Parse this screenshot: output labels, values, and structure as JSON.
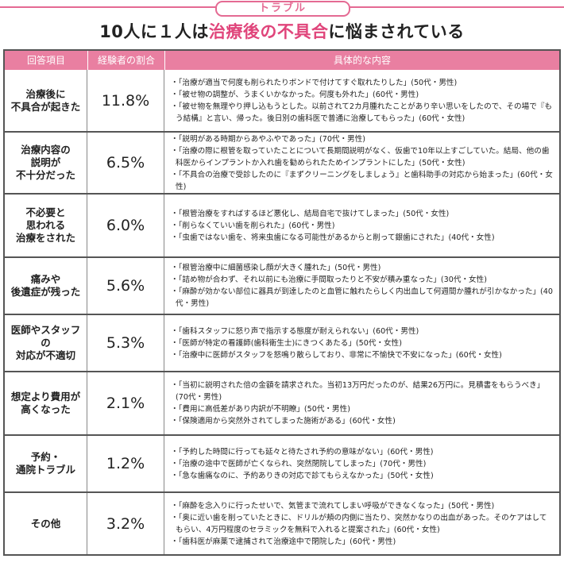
{
  "header": {
    "badge": "トラブル",
    "title_pre": "10人に１人は",
    "title_highlight": "治療後の不具合",
    "title_post": "に悩まされている"
  },
  "table": {
    "columns": [
      "回答項目",
      "経験者の割合",
      "具体的な内容"
    ],
    "rows": [
      {
        "item": "治療後に\n不具合が起きた",
        "percent": "11.8%",
        "details": [
          "「治療が適当で何度も削られたりボンドで付けてすぐ取れたりした」(50代・男性)",
          "「被せ物の調整が、うまくいかなかった。何度も外れた」(60代・男性)",
          "「被せ物を無理やり押し込もうとした。以前されて2カ月腫れたことがあり辛い思いをしたので、その場で『もう結構』と言い、帰った。後日別の歯科医で普通に治療してもらった」(60代・女性)"
        ]
      },
      {
        "item": "治療内容の\n説明が\n不十分だった",
        "percent": "6.5%",
        "details": [
          "「説明がある時期からあやふやであった」(70代・男性)",
          "「治療の際に根管を取っていたことについて長期間説明がなく、仮歯で10年以上すごしていた。結局、他の歯科医からインプラントか入れ歯を勧められたためインプラントにした」(50代・女性)",
          "「不具合の治療で受診したのに『まずクリーニングをしましょう』と歯科助手の対応から始まった」(60代・女性)"
        ]
      },
      {
        "item": "不必要と\n思われる\n治療をされた",
        "percent": "6.0%",
        "details": [
          "「根管治療をすればするほど悪化し、結局自宅で抜けてしまった」(50代・女性)",
          "「削らなくていい歯を削られた」(60代・男性)",
          "「虫歯ではない歯を、将来虫歯になる可能性があるからと削って銀歯にされた」(40代・女性)"
        ]
      },
      {
        "item": "痛みや\n後遺症が残った",
        "percent": "5.6%",
        "details": [
          "「根管治療中に細菌感染し顔が大きく腫れた」(50代・男性)",
          "「詰め物が合わず、それ以前にも治療に手間取ったりと不安が積み重なった」(30代・女性)",
          "「麻酔が効かない部位に器具が到達したのと血管に触れたらしく内出血して何週間か腫れが引かなかった」(40代・男性)"
        ]
      },
      {
        "item": "医師やスタッフの\n対応が不適切",
        "percent": "5.3%",
        "details": [
          "「歯科スタッフに怒り声で指示する態度が耐えられない」(60代・男性)",
          "「医師が特定の看護師(歯科衛生士)にきつくあたる」(50代・女性)",
          "「治療中に医師がスタッフを怒鳴り散らしており、非常に不愉快で不安になった」(60代・女性)"
        ]
      },
      {
        "item": "想定より費用が\n高くなった",
        "percent": "2.1%",
        "details": [
          "「当初に説明された倍の金額を請求された。当初13万円だったのが、結果26万円に。見積書をもらうべき」(70代・男性)",
          "「費用に高低差があり内訳が不明瞭」(50代・男性)",
          "「保険適用から突然外されてしまった施術がある」(60代・女性)"
        ]
      },
      {
        "item": "予約・\n通院トラブル",
        "percent": "1.2%",
        "details": [
          "「予約した時間に行っても延々と待たされ予約の意味がない」(60代・男性)",
          "「治療の途中で医師が亡くなられ、突然閉院してしまった」(70代・男性)",
          "「急な歯痛なのに、予約ありきの対応で診てもらえなかった」(50代・女性)"
        ]
      },
      {
        "item": "その他",
        "percent": "3.2%",
        "details": [
          "「麻酔を念入りに行ったせいで、気管まで流れてしまい呼吸ができなくなった」(50代・男性)",
          "「奥に近い歯を削っていたときに、ドリルが頬の内側に当たり、突然かなりの出血があった。そのケアはしてもらい、4万円程度のセラミックを無料で入れると提案された」(60代・女性)",
          "「歯科医が麻薬で逮捕されて治療途中で閉院した」(60代・男性)"
        ]
      }
    ]
  }
}
